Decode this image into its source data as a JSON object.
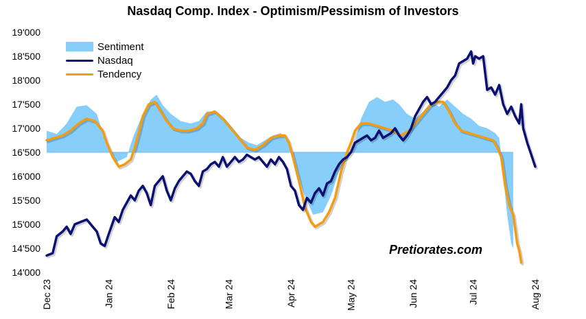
{
  "chart_data": {
    "type": "line",
    "title": "Nasdaq Comp. Index - Optimism/Pessimism of Investors",
    "watermark": "Pretiorates.com",
    "ylim": [
      14000,
      19000
    ],
    "y_ticks": [
      "19'000",
      "18'500",
      "18'000",
      "17'500",
      "17'000",
      "16'500",
      "16'000",
      "15'500",
      "15'000",
      "14'500",
      "14'000"
    ],
    "y_tick_values": [
      19000,
      18500,
      18000,
      17500,
      17000,
      16500,
      16000,
      15500,
      15000,
      14500,
      14000
    ],
    "x_ticks": [
      "Dec 23",
      "Jan 24",
      "Feb 24",
      "Mar 24",
      "Apr 24",
      "May 24",
      "Jun 24",
      "Jul 24",
      "Aug 24"
    ],
    "x_tick_positions": [
      0,
      31,
      62,
      91,
      122,
      152,
      183,
      213,
      244
    ],
    "xlim": [
      0,
      244
    ],
    "baseline": 16500,
    "legend_position": "top-left",
    "series": [
      {
        "name": "Sentiment",
        "kind": "area",
        "color": "#87cefa",
        "points": [
          [
            0,
            16950
          ],
          [
            5,
            16880
          ],
          [
            10,
            17100
          ],
          [
            15,
            17450
          ],
          [
            20,
            17480
          ],
          [
            25,
            17300
          ],
          [
            28,
            16900
          ],
          [
            32,
            16550
          ],
          [
            35,
            16300
          ],
          [
            40,
            16400
          ],
          [
            43,
            16800
          ],
          [
            47,
            17200
          ],
          [
            52,
            17600
          ],
          [
            55,
            17700
          ],
          [
            58,
            17480
          ],
          [
            62,
            17300
          ],
          [
            67,
            17150
          ],
          [
            72,
            17100
          ],
          [
            76,
            17150
          ],
          [
            80,
            17350
          ],
          [
            85,
            17350
          ],
          [
            89,
            17200
          ],
          [
            93,
            17000
          ],
          [
            97,
            16800
          ],
          [
            101,
            16700
          ],
          [
            105,
            16650
          ],
          [
            109,
            16750
          ],
          [
            113,
            16850
          ],
          [
            117,
            16900
          ],
          [
            120,
            16750
          ],
          [
            124,
            16300
          ],
          [
            128,
            15700
          ],
          [
            133,
            15200
          ],
          [
            138,
            15250
          ],
          [
            142,
            15600
          ],
          [
            146,
            16100
          ],
          [
            150,
            16350
          ],
          [
            153,
            16550
          ],
          [
            157,
            17200
          ],
          [
            161,
            17550
          ],
          [
            165,
            17650
          ],
          [
            169,
            17550
          ],
          [
            173,
            17600
          ],
          [
            176,
            17500
          ],
          [
            180,
            17300
          ],
          [
            184,
            17200
          ],
          [
            188,
            17350
          ],
          [
            192,
            17550
          ],
          [
            196,
            17450
          ],
          [
            200,
            17600
          ],
          [
            204,
            17450
          ],
          [
            208,
            17300
          ],
          [
            212,
            17200
          ],
          [
            216,
            17050
          ],
          [
            220,
            17000
          ],
          [
            224,
            16900
          ],
          [
            226,
            16800
          ],
          [
            228,
            16000
          ],
          [
            230,
            15200
          ],
          [
            232,
            14600
          ],
          [
            233,
            14500
          ],
          [
            233,
            16500
          ]
        ]
      },
      {
        "name": "Nasdaq",
        "kind": "line",
        "color": "#0a1172",
        "points": [
          [
            0,
            14350
          ],
          [
            3,
            14400
          ],
          [
            5,
            14750
          ],
          [
            8,
            14850
          ],
          [
            10,
            14950
          ],
          [
            12,
            14800
          ],
          [
            14,
            15000
          ],
          [
            17,
            15050
          ],
          [
            20,
            15100
          ],
          [
            23,
            14950
          ],
          [
            25,
            14850
          ],
          [
            27,
            14600
          ],
          [
            29,
            14550
          ],
          [
            31,
            14800
          ],
          [
            34,
            15150
          ],
          [
            36,
            15050
          ],
          [
            38,
            15300
          ],
          [
            40,
            15450
          ],
          [
            42,
            15600
          ],
          [
            44,
            15500
          ],
          [
            46,
            15700
          ],
          [
            48,
            15800
          ],
          [
            50,
            15650
          ],
          [
            52,
            15400
          ],
          [
            54,
            15800
          ],
          [
            56,
            15900
          ],
          [
            58,
            16000
          ],
          [
            60,
            15700
          ],
          [
            62,
            15500
          ],
          [
            64,
            15750
          ],
          [
            66,
            15900
          ],
          [
            68,
            16000
          ],
          [
            70,
            16100
          ],
          [
            72,
            16050
          ],
          [
            74,
            15900
          ],
          [
            76,
            15800
          ],
          [
            78,
            16100
          ],
          [
            80,
            16150
          ],
          [
            82,
            16250
          ],
          [
            84,
            16300
          ],
          [
            86,
            16200
          ],
          [
            88,
            16400
          ],
          [
            90,
            16200
          ],
          [
            92,
            16300
          ],
          [
            94,
            16400
          ],
          [
            96,
            16300
          ],
          [
            98,
            16350
          ],
          [
            100,
            16450
          ],
          [
            102,
            16400
          ],
          [
            104,
            16350
          ],
          [
            106,
            16400
          ],
          [
            108,
            16300
          ],
          [
            110,
            16200
          ],
          [
            112,
            16350
          ],
          [
            114,
            16250
          ],
          [
            116,
            16400
          ],
          [
            118,
            16300
          ],
          [
            120,
            16150
          ],
          [
            122,
            15800
          ],
          [
            124,
            15700
          ],
          [
            126,
            15400
          ],
          [
            128,
            15300
          ],
          [
            130,
            15550
          ],
          [
            132,
            15450
          ],
          [
            134,
            15650
          ],
          [
            136,
            15750
          ],
          [
            138,
            15600
          ],
          [
            140,
            15850
          ],
          [
            142,
            15900
          ],
          [
            144,
            16100
          ],
          [
            146,
            16250
          ],
          [
            148,
            16350
          ],
          [
            150,
            16400
          ],
          [
            152,
            16500
          ],
          [
            154,
            16700
          ],
          [
            156,
            16750
          ],
          [
            158,
            16800
          ],
          [
            160,
            16850
          ],
          [
            162,
            16750
          ],
          [
            164,
            16800
          ],
          [
            166,
            16950
          ],
          [
            168,
            16800
          ],
          [
            170,
            16850
          ],
          [
            172,
            16900
          ],
          [
            174,
            17000
          ],
          [
            176,
            16850
          ],
          [
            178,
            16750
          ],
          [
            180,
            16850
          ],
          [
            182,
            17000
          ],
          [
            184,
            17250
          ],
          [
            186,
            17400
          ],
          [
            188,
            17550
          ],
          [
            190,
            17650
          ],
          [
            192,
            17500
          ],
          [
            194,
            17550
          ],
          [
            196,
            17650
          ],
          [
            198,
            17750
          ],
          [
            200,
            17850
          ],
          [
            202,
            18000
          ],
          [
            204,
            18100
          ],
          [
            206,
            18350
          ],
          [
            208,
            18400
          ],
          [
            210,
            18450
          ],
          [
            212,
            18600
          ],
          [
            213,
            18350
          ],
          [
            214,
            18500
          ],
          [
            216,
            18450
          ],
          [
            218,
            18500
          ],
          [
            220,
            17800
          ],
          [
            222,
            17850
          ],
          [
            224,
            17700
          ],
          [
            226,
            17900
          ],
          [
            228,
            17500
          ],
          [
            230,
            17300
          ],
          [
            232,
            17450
          ],
          [
            234,
            17250
          ],
          [
            236,
            17100
          ],
          [
            237,
            17500
          ],
          [
            238,
            17000
          ],
          [
            240,
            16700
          ],
          [
            242,
            16450
          ],
          [
            244,
            16200
          ]
        ]
      },
      {
        "name": "Tendency",
        "kind": "line",
        "color": "#f39c12",
        "points": [
          [
            0,
            16750
          ],
          [
            4,
            16800
          ],
          [
            8,
            16850
          ],
          [
            12,
            16950
          ],
          [
            16,
            17100
          ],
          [
            20,
            17200
          ],
          [
            24,
            17150
          ],
          [
            28,
            16950
          ],
          [
            30,
            16700
          ],
          [
            33,
            16400
          ],
          [
            36,
            16200
          ],
          [
            39,
            16250
          ],
          [
            42,
            16350
          ],
          [
            44,
            16600
          ],
          [
            46,
            16900
          ],
          [
            48,
            17250
          ],
          [
            51,
            17500
          ],
          [
            54,
            17550
          ],
          [
            57,
            17350
          ],
          [
            60,
            17150
          ],
          [
            63,
            17000
          ],
          [
            67,
            16950
          ],
          [
            71,
            16950
          ],
          [
            75,
            17000
          ],
          [
            78,
            17100
          ],
          [
            80,
            17300
          ],
          [
            84,
            17350
          ],
          [
            88,
            17200
          ],
          [
            92,
            17000
          ],
          [
            96,
            16800
          ],
          [
            100,
            16600
          ],
          [
            104,
            16550
          ],
          [
            108,
            16650
          ],
          [
            112,
            16800
          ],
          [
            116,
            16850
          ],
          [
            119,
            16850
          ],
          [
            121,
            16700
          ],
          [
            123,
            16400
          ],
          [
            126,
            15900
          ],
          [
            129,
            15350
          ],
          [
            132,
            15050
          ],
          [
            134,
            14950
          ],
          [
            136,
            15000
          ],
          [
            138,
            15050
          ],
          [
            141,
            15250
          ],
          [
            144,
            15550
          ],
          [
            147,
            16100
          ],
          [
            150,
            16500
          ],
          [
            152,
            16700
          ],
          [
            154,
            16950
          ],
          [
            157,
            17100
          ],
          [
            161,
            17100
          ],
          [
            165,
            17050
          ],
          [
            169,
            17000
          ],
          [
            173,
            16950
          ],
          [
            177,
            16850
          ],
          [
            181,
            16950
          ],
          [
            185,
            17150
          ],
          [
            189,
            17350
          ],
          [
            192,
            17500
          ],
          [
            195,
            17550
          ],
          [
            198,
            17550
          ],
          [
            201,
            17350
          ],
          [
            204,
            17100
          ],
          [
            207,
            16950
          ],
          [
            211,
            16900
          ],
          [
            215,
            16850
          ],
          [
            219,
            16800
          ],
          [
            223,
            16750
          ],
          [
            225,
            16600
          ],
          [
            227,
            16400
          ],
          [
            229,
            15800
          ],
          [
            231,
            15400
          ],
          [
            233,
            15200
          ],
          [
            234,
            14900
          ],
          [
            235,
            14600
          ],
          [
            236,
            14450
          ],
          [
            237,
            14200
          ]
        ]
      }
    ]
  }
}
